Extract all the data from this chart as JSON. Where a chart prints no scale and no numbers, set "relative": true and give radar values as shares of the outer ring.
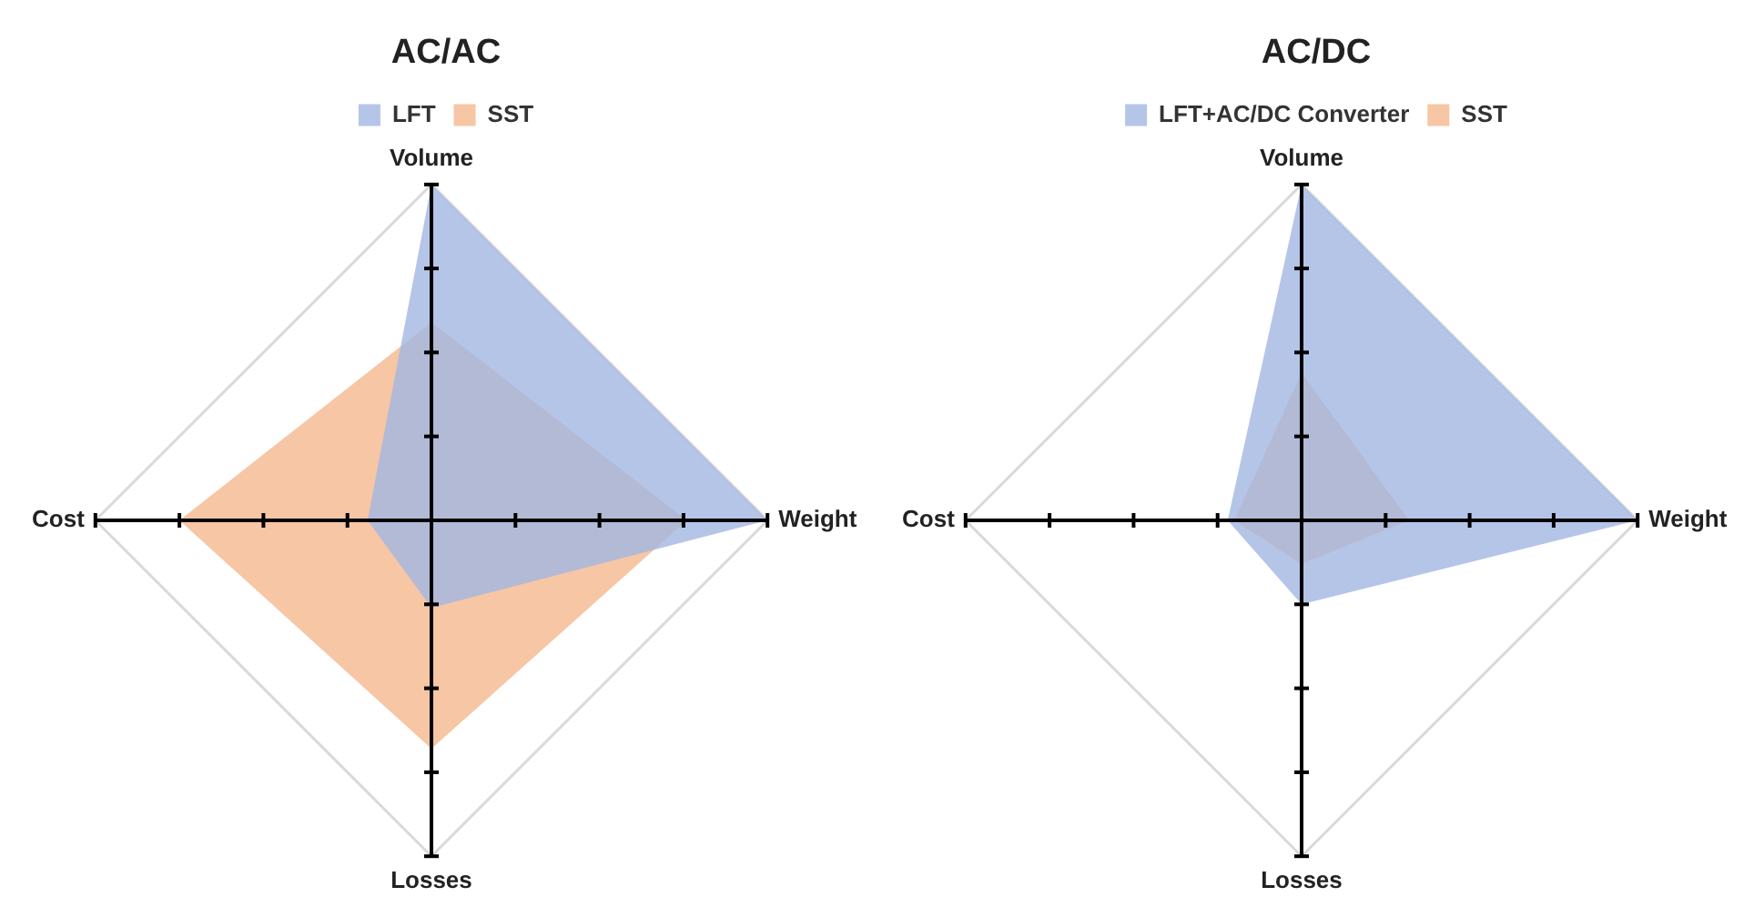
{
  "chart_data": [
    {
      "type": "radar",
      "title": "AC/AC",
      "categories": [
        "Volume",
        "Weight",
        "Losses",
        "Cost"
      ],
      "relative": true,
      "legend": "top",
      "grid": true,
      "marker": "none",
      "series": [
        {
          "name": "LFT",
          "color": "#a3b7e2",
          "values": [
            1.0,
            1.0,
            0.26,
            0.19
          ]
        },
        {
          "name": "SST",
          "color": "#f4b88e",
          "values": [
            0.59,
            0.76,
            0.68,
            0.75
          ]
        }
      ]
    },
    {
      "type": "radar",
      "title": "AC/DC",
      "categories": [
        "Volume",
        "Weight",
        "Losses",
        "Cost"
      ],
      "relative": true,
      "legend": "top",
      "grid": true,
      "marker": "none",
      "series": [
        {
          "name": "LFT+AC/DC Converter",
          "color": "#a3b7e2",
          "values": [
            1.0,
            1.0,
            0.25,
            0.22
          ]
        },
        {
          "name": "SST",
          "color": "#f4b88e",
          "values": [
            0.44,
            0.32,
            0.13,
            0.2
          ]
        }
      ]
    }
  ]
}
